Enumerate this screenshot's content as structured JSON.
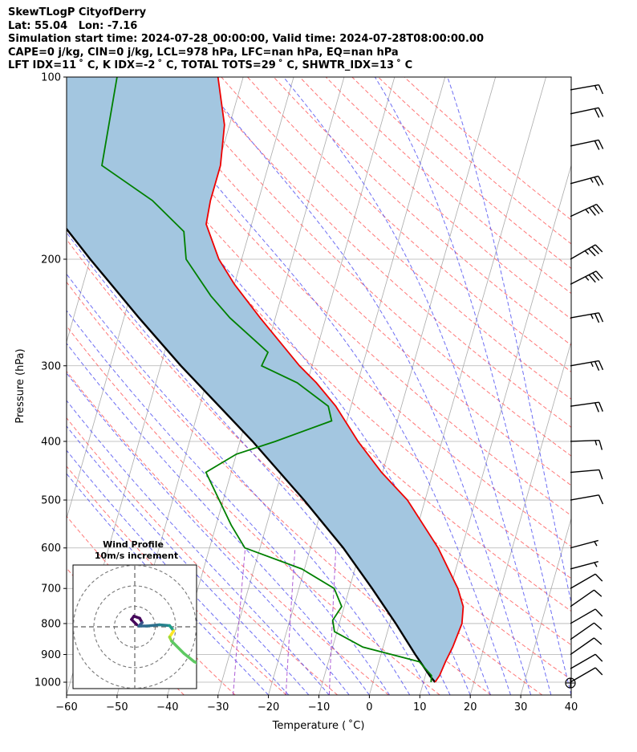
{
  "header": {
    "line1": "SkewTLogP CityofDerry",
    "line2": "Lat: 55.04   Lon: -7.16",
    "line3": "Simulation start time: 2024-07-28_00:00:00, Valid time: 2024-07-28T08:00:00.00",
    "line4": "CAPE=0 j/kg, CIN=0 j/kg, LCL=978 hPa, LFC=nan hPa, EQ=nan hPa",
    "line5": "LFT IDX=11 ˚ C, K IDX=-2 ˚ C, TOTAL TOTS=29 ˚ C, SHWTR_IDX=13 ˚ C"
  },
  "chart_data": {
    "type": "skewt",
    "xlabel": "Temperature ( ˚C)",
    "ylabel": "Pressure (hPa)",
    "xlim": [
      -60,
      40
    ],
    "ylim": [
      1050,
      100
    ],
    "x_ticks": [
      "−60",
      "−50",
      "−40",
      "−30",
      "−20",
      "−10",
      "0",
      "10",
      "20",
      "30",
      "40"
    ],
    "y_ticks": [
      {
        "p": 100,
        "label": "100"
      },
      {
        "p": 200,
        "label": "200"
      },
      {
        "p": 300,
        "label": "300"
      },
      {
        "p": 400,
        "label": "400"
      },
      {
        "p": 500,
        "label": "500"
      },
      {
        "p": 600,
        "label": "600"
      },
      {
        "p": 700,
        "label": "700"
      },
      {
        "p": 800,
        "label": "800"
      },
      {
        "p": 900,
        "label": "900"
      },
      {
        "p": 1000,
        "label": "1000"
      }
    ],
    "colors": {
      "temperature": "#ee0000",
      "dewpoint": "#008000",
      "parcel": "#000000",
      "shade": "#a3c6e0",
      "dry_adiabat": "#ff5555",
      "moist_adiabat": "#4a4af0",
      "mixing_ratio": "#9933cc",
      "isotherm": "#aaaaaa"
    },
    "temperature": [
      {
        "p": 1000,
        "t": 12.3
      },
      {
        "p": 975,
        "t": 12.8
      },
      {
        "p": 925,
        "t": 13.2
      },
      {
        "p": 875,
        "t": 13.8
      },
      {
        "p": 800,
        "t": 14.3
      },
      {
        "p": 750,
        "t": 13.6
      },
      {
        "p": 700,
        "t": 11.5
      },
      {
        "p": 600,
        "t": 5.3
      },
      {
        "p": 500,
        "t": -3.5
      },
      {
        "p": 450,
        "t": -10.2
      },
      {
        "p": 400,
        "t": -16.6
      },
      {
        "p": 350,
        "t": -23.0
      },
      {
        "p": 320,
        "t": -28.2
      },
      {
        "p": 300,
        "t": -32.5
      },
      {
        "p": 250,
        "t": -43.0
      },
      {
        "p": 220,
        "t": -50.0
      },
      {
        "p": 200,
        "t": -54.5
      },
      {
        "p": 175,
        "t": -59.0
      },
      {
        "p": 160,
        "t": -59.5
      },
      {
        "p": 140,
        "t": -59.5
      },
      {
        "p": 120,
        "t": -61.0
      },
      {
        "p": 100,
        "t": -65.0
      }
    ],
    "dewpoint": [
      {
        "p": 1000,
        "td": 11.5
      },
      {
        "p": 975,
        "td": 11.2
      },
      {
        "p": 925,
        "td": 8.0
      },
      {
        "p": 875,
        "td": -4.0
      },
      {
        "p": 825,
        "td": -10.5
      },
      {
        "p": 790,
        "td": -11.5
      },
      {
        "p": 750,
        "td": -10.5
      },
      {
        "p": 700,
        "td": -13.0
      },
      {
        "p": 650,
        "td": -20.5
      },
      {
        "p": 600,
        "td": -33.0
      },
      {
        "p": 550,
        "td": -37.0
      },
      {
        "p": 450,
        "td": -45.0
      },
      {
        "p": 420,
        "td": -40.0
      },
      {
        "p": 400,
        "td": -33.0
      },
      {
        "p": 370,
        "td": -23.0
      },
      {
        "p": 350,
        "td": -24.5
      },
      {
        "p": 320,
        "td": -32.0
      },
      {
        "p": 300,
        "td": -40.0
      },
      {
        "p": 285,
        "td": -39.5
      },
      {
        "p": 250,
        "td": -49.0
      },
      {
        "p": 230,
        "td": -54.0
      },
      {
        "p": 200,
        "td": -61.0
      },
      {
        "p": 180,
        "td": -63.0
      },
      {
        "p": 160,
        "td": -71.0
      },
      {
        "p": 140,
        "td": -83.0
      },
      {
        "p": 100,
        "td": -85.0
      }
    ],
    "parcel": [
      {
        "p": 1000,
        "t": 12.3
      },
      {
        "p": 978,
        "t": 11.0
      },
      {
        "p": 900,
        "t": 6.8
      },
      {
        "p": 800,
        "t": 1.2
      },
      {
        "p": 700,
        "t": -5.5
      },
      {
        "p": 600,
        "t": -13.5
      },
      {
        "p": 500,
        "t": -24.0
      },
      {
        "p": 400,
        "t": -37.5
      },
      {
        "p": 300,
        "t": -56.0
      },
      {
        "p": 250,
        "t": -67.0
      },
      {
        "p": 200,
        "t": -80.0
      },
      {
        "p": 150,
        "t": -96.0
      },
      {
        "p": 100,
        "t": -118.0
      }
    ],
    "wind_barbs": [
      {
        "p": 1000,
        "speed_kt": 10,
        "dir_deg": 240
      },
      {
        "p": 950,
        "speed_kt": 10,
        "dir_deg": 240
      },
      {
        "p": 900,
        "speed_kt": 10,
        "dir_deg": 235
      },
      {
        "p": 850,
        "speed_kt": 10,
        "dir_deg": 235
      },
      {
        "p": 800,
        "speed_kt": 10,
        "dir_deg": 240
      },
      {
        "p": 750,
        "speed_kt": 10,
        "dir_deg": 235
      },
      {
        "p": 700,
        "speed_kt": 10,
        "dir_deg": 240
      },
      {
        "p": 650,
        "speed_kt": 5,
        "dir_deg": 255
      },
      {
        "p": 600,
        "speed_kt": 5,
        "dir_deg": 255
      },
      {
        "p": 500,
        "speed_kt": 10,
        "dir_deg": 260
      },
      {
        "p": 450,
        "speed_kt": 10,
        "dir_deg": 265
      },
      {
        "p": 400,
        "speed_kt": 15,
        "dir_deg": 268
      },
      {
        "p": 350,
        "speed_kt": 20,
        "dir_deg": 262
      },
      {
        "p": 300,
        "speed_kt": 25,
        "dir_deg": 260
      },
      {
        "p": 250,
        "speed_kt": 25,
        "dir_deg": 260
      },
      {
        "p": 220,
        "speed_kt": 35,
        "dir_deg": 243
      },
      {
        "p": 200,
        "speed_kt": 35,
        "dir_deg": 240
      },
      {
        "p": 170,
        "speed_kt": 35,
        "dir_deg": 245
      },
      {
        "p": 150,
        "speed_kt": 25,
        "dir_deg": 255
      },
      {
        "p": 130,
        "speed_kt": 20,
        "dir_deg": 258
      },
      {
        "p": 115,
        "speed_kt": 20,
        "dir_deg": 258
      },
      {
        "p": 105,
        "speed_kt": 15,
        "dir_deg": 260
      }
    ],
    "hodograph": {
      "title": "Wind Profile",
      "subtitle": "10m/s increment",
      "ring_step_ms": 10,
      "points_uv": [
        [
          0.5,
          0.5
        ],
        [
          -0.8,
          1.8
        ],
        [
          -0.2,
          2.6
        ],
        [
          1.2,
          2.1
        ],
        [
          1.8,
          1.0
        ],
        [
          1.0,
          0.2
        ],
        [
          3.0,
          0.2
        ],
        [
          6.0,
          0.5
        ],
        [
          8.5,
          0.3
        ],
        [
          9.5,
          -1.0
        ],
        [
          8.5,
          -2.5
        ],
        [
          9.0,
          -3.5
        ],
        [
          12.0,
          -6.5
        ],
        [
          14.5,
          -8.5
        ],
        [
          15.5,
          -9.0
        ]
      ],
      "colors": [
        "#46085c",
        "#46085c",
        "#46085c",
        "#46085c",
        "#46085c",
        "#3b528b",
        "#31688e",
        "#2d708e",
        "#26828e",
        "#1f9e89",
        "#fde725",
        "#9bd93c",
        "#5ec962",
        "#5ec962",
        "#5ec962"
      ]
    }
  }
}
